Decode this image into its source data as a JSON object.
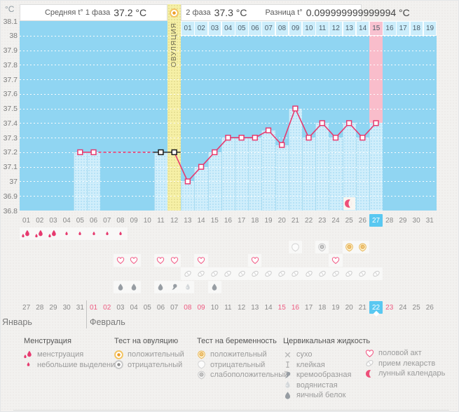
{
  "header": {
    "unit": "°C",
    "phase1_label": "Средняя t° 1 фаза",
    "phase1_value": "37.2 °C",
    "phase2_label": "2 фаза",
    "phase2_value": "37.3 °C",
    "diff_label": "Разница t°",
    "diff_value": "0.099999999999994 °C",
    "ovulation_header_icon": "ovulation-test-positive-icon"
  },
  "chart_data": {
    "type": "line",
    "title": "Basal body temperature cycle chart",
    "ylabel": "°C",
    "ylim": [
      36.8,
      38.1
    ],
    "ytick_labels": [
      "38.1",
      "38",
      "37.9",
      "37.8",
      "37.7",
      "37.6",
      "37.5",
      "37.4",
      "37.3",
      "37.2",
      "37.1",
      "37",
      "36.9",
      "36.8"
    ],
    "grid": "dotted-white-horizontal",
    "cycle_days": [
      "01",
      "02",
      "03",
      "04",
      "05",
      "06",
      "07",
      "08",
      "09",
      "10",
      "11",
      "12",
      "13",
      "14",
      "15",
      "16",
      "17",
      "18",
      "19",
      "20",
      "21",
      "22",
      "23",
      "24",
      "25",
      "26",
      "27",
      "28",
      "29",
      "30",
      "31"
    ],
    "current_cycle_day": 27,
    "ovulation_cycle_day": 12,
    "ovulation_column_label": "ОВУЛЯЦИЯ",
    "highlight_pink_cycle_day": 27,
    "dpo_header": {
      "start_cycle_day": 13,
      "labels": [
        "01",
        "02",
        "03",
        "04",
        "05",
        "06",
        "07",
        "08",
        "09",
        "10",
        "11",
        "12",
        "13",
        "14",
        "15",
        "16",
        "17",
        "18",
        "19"
      ],
      "pink_label": "15"
    },
    "series": [
      {
        "name": "temperature",
        "points": [
          {
            "day": 5,
            "temp": 37.2
          },
          {
            "day": 6,
            "temp": 37.2
          },
          {
            "day": 11,
            "temp": 37.2,
            "marker": "black"
          },
          {
            "day": 12,
            "temp": 37.2,
            "marker": "black"
          },
          {
            "day": 13,
            "temp": 37.0
          },
          {
            "day": 14,
            "temp": 37.1
          },
          {
            "day": 15,
            "temp": 37.2
          },
          {
            "day": 16,
            "temp": 37.3
          },
          {
            "day": 17,
            "temp": 37.3
          },
          {
            "day": 18,
            "temp": 37.3
          },
          {
            "day": 19,
            "temp": 37.35
          },
          {
            "day": 20,
            "temp": 37.25
          },
          {
            "day": 21,
            "temp": 37.5
          },
          {
            "day": 22,
            "temp": 37.3
          },
          {
            "day": 23,
            "temp": 37.4
          },
          {
            "day": 24,
            "temp": 37.3
          },
          {
            "day": 25,
            "temp": 37.4
          },
          {
            "day": 26,
            "temp": 37.3
          },
          {
            "day": 27,
            "temp": 37.4
          }
        ],
        "dashed_gap_days": [
          6,
          11
        ],
        "black_segment_days": [
          11,
          12
        ]
      }
    ],
    "moon_marker_day": 25
  },
  "rows": {
    "menstruation": {
      "heavy_days": [
        1,
        2,
        3
      ],
      "light_days": [
        4,
        5,
        6,
        7,
        8
      ]
    },
    "tests": [
      {
        "day": 21,
        "type": "pregnancy-negative"
      },
      {
        "day": 23,
        "type": "pregnancy-weak-positive"
      },
      {
        "day": 25,
        "type": "pregnancy-positive"
      },
      {
        "day": 26,
        "type": "pregnancy-positive"
      }
    ],
    "intercourse_days": [
      8,
      9,
      11,
      12,
      14,
      18,
      24
    ],
    "medication_days": [
      13,
      14,
      15,
      16,
      17,
      18,
      19,
      20,
      21,
      22,
      23,
      24,
      25,
      26,
      27
    ],
    "cervical_fluid": [
      {
        "day": 8,
        "type": "eggwhite"
      },
      {
        "day": 9,
        "type": "eggwhite"
      },
      {
        "day": 11,
        "type": "eggwhite"
      },
      {
        "day": 12,
        "type": "creamy"
      },
      {
        "day": 13,
        "type": "watery"
      },
      {
        "day": 15,
        "type": "eggwhite"
      }
    ]
  },
  "calendar": {
    "month1": "Январь",
    "month2": "Февраль",
    "month1_dates": [
      "27",
      "28",
      "29",
      "30",
      "31"
    ],
    "month2_dates": [
      "01",
      "02",
      "03",
      "04",
      "05",
      "06",
      "07",
      "08",
      "09",
      "10",
      "11",
      "12",
      "13",
      "14",
      "15",
      "16",
      "17",
      "18",
      "19",
      "20",
      "21",
      "22",
      "23",
      "24",
      "25",
      "26"
    ],
    "weekend_month2_dates": [
      "01",
      "02",
      "08",
      "09",
      "15",
      "16",
      "22",
      "23"
    ],
    "today_month2_date": "22"
  },
  "legend": {
    "sections": [
      {
        "title": "Менструация",
        "items": [
          {
            "icon": "menstruation-icon",
            "label": "менструация"
          },
          {
            "icon": "spotting-icon",
            "label": "небольшие выделения"
          }
        ]
      },
      {
        "title": "Тест на овуляцию",
        "items": [
          {
            "icon": "ovulation-test-positive-icon",
            "label": "положительный"
          },
          {
            "icon": "ovulation-test-negative-icon",
            "label": "отрицательный"
          }
        ]
      },
      {
        "title": "Тест на беременность",
        "items": [
          {
            "icon": "pregnancy-test-positive-icon",
            "label": "положительный"
          },
          {
            "icon": "pregnancy-test-negative-icon",
            "label": "отрицательный"
          },
          {
            "icon": "pregnancy-test-weak-positive-icon",
            "label": "слабоположительный"
          }
        ]
      },
      {
        "title": "Цервикальная жидкость",
        "items": [
          {
            "icon": "cf-dry-icon",
            "label": "сухо"
          },
          {
            "icon": "cf-sticky-icon",
            "label": "клейкая"
          },
          {
            "icon": "cf-creamy-icon",
            "label": "кремообразная"
          },
          {
            "icon": "cf-watery-icon",
            "label": "водянистая"
          },
          {
            "icon": "cf-eggwhite-icon",
            "label": "яичный белок"
          }
        ]
      },
      {
        "title": "",
        "items": [
          {
            "icon": "intercourse-icon",
            "label": "половой акт"
          },
          {
            "icon": "medication-icon",
            "label": "прием лекарств"
          },
          {
            "icon": "lunar-calendar-icon",
            "label": "лунный календарь"
          }
        ]
      }
    ]
  },
  "colors": {
    "accent_line": "#e63a6f",
    "chart_blue": "#90d5f2",
    "measured_blue": "#d0eefb",
    "ovulation_yellow": "#f6f0a6",
    "highlight_pink": "#f9bdcb",
    "today_blue": "#59c8f1",
    "weekend_red": "#ee5c82"
  }
}
